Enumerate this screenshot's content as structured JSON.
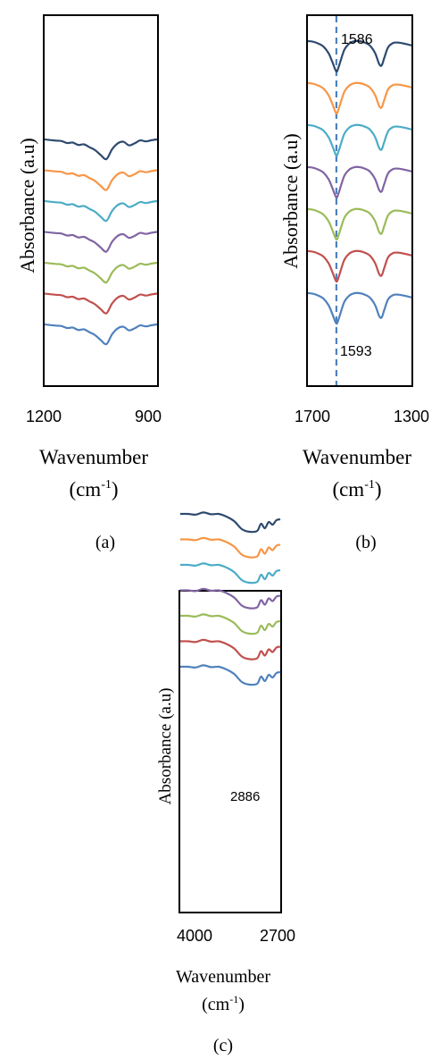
{
  "chart_data": [
    {
      "panel": "(a)",
      "type": "line",
      "ylabel": "Absorbance (a.u)",
      "xlabel": "Wavenumber",
      "xunit": "(cm",
      "xunit_sup": "-1",
      "xunit_close": ")",
      "x_ticks": [
        "1200",
        "900"
      ],
      "xlim": [
        1200,
        900
      ],
      "x_reversed": true,
      "y_ticks_shown": false,
      "grid": false,
      "legend": "none",
      "x": [
        1200,
        1185,
        1170,
        1155,
        1140,
        1125,
        1110,
        1095,
        1080,
        1065,
        1050,
        1035,
        1020,
        1005,
        990,
        975,
        960,
        945,
        930,
        915,
        900
      ],
      "series": [
        {
          "color": "#2E4A6E",
          "offset": 6,
          "values": [
            0.0,
            0.03,
            0.06,
            0.08,
            0.18,
            0.16,
            0.28,
            0.25,
            0.4,
            0.55,
            0.8,
            1.0,
            0.5,
            0.2,
            0.12,
            0.3,
            0.2,
            0.05,
            0.1,
            0.04,
            0.0
          ]
        },
        {
          "color": "#F79646",
          "offset": 5,
          "values": [
            0.0,
            0.03,
            0.06,
            0.08,
            0.18,
            0.16,
            0.28,
            0.25,
            0.4,
            0.55,
            0.8,
            1.0,
            0.5,
            0.2,
            0.12,
            0.3,
            0.2,
            0.05,
            0.1,
            0.04,
            0.0
          ]
        },
        {
          "color": "#4BACC6",
          "offset": 4,
          "values": [
            0.0,
            0.03,
            0.06,
            0.08,
            0.18,
            0.16,
            0.28,
            0.25,
            0.4,
            0.55,
            0.8,
            1.0,
            0.5,
            0.2,
            0.12,
            0.3,
            0.2,
            0.05,
            0.1,
            0.04,
            0.0
          ]
        },
        {
          "color": "#8064A2",
          "offset": 3,
          "values": [
            0.0,
            0.03,
            0.06,
            0.08,
            0.18,
            0.16,
            0.28,
            0.25,
            0.4,
            0.55,
            0.8,
            1.0,
            0.5,
            0.2,
            0.12,
            0.3,
            0.2,
            0.05,
            0.1,
            0.04,
            0.0
          ]
        },
        {
          "color": "#9BBB59",
          "offset": 2,
          "values": [
            0.0,
            0.03,
            0.06,
            0.08,
            0.18,
            0.16,
            0.28,
            0.25,
            0.4,
            0.55,
            0.8,
            1.0,
            0.5,
            0.2,
            0.12,
            0.3,
            0.2,
            0.05,
            0.1,
            0.04,
            0.0
          ]
        },
        {
          "color": "#C0504D",
          "offset": 1,
          "values": [
            0.0,
            0.03,
            0.06,
            0.08,
            0.18,
            0.16,
            0.28,
            0.25,
            0.4,
            0.55,
            0.8,
            1.0,
            0.5,
            0.2,
            0.12,
            0.3,
            0.2,
            0.05,
            0.1,
            0.04,
            0.0
          ]
        },
        {
          "color": "#4F81BD",
          "offset": 0,
          "values": [
            0.0,
            0.03,
            0.06,
            0.08,
            0.18,
            0.16,
            0.28,
            0.25,
            0.4,
            0.55,
            0.8,
            1.0,
            0.5,
            0.2,
            0.12,
            0.3,
            0.2,
            0.05,
            0.1,
            0.04,
            0.0
          ]
        }
      ]
    },
    {
      "panel": "(b)",
      "type": "line",
      "ylabel": "Absorbance (a.u)",
      "xlabel": "Wavenumber",
      "xunit": "(cm",
      "xunit_sup": "-1",
      "xunit_close": ")",
      "x_ticks": [
        "1700",
        "1300"
      ],
      "xlim": [
        1700,
        1300
      ],
      "x_reversed": true,
      "y_ticks_shown": false,
      "grid": false,
      "legend": "none",
      "reference_line": {
        "x": 1590,
        "style": "dashed",
        "color": "#4F81BD"
      },
      "annotations": [
        {
          "text": "1586",
          "x": 1586,
          "position": "top"
        },
        {
          "text": "1593",
          "x": 1593,
          "position": "bottom"
        }
      ],
      "x": [
        1700,
        1680,
        1660,
        1640,
        1620,
        1605,
        1595,
        1588,
        1580,
        1560,
        1540,
        1520,
        1500,
        1480,
        1460,
        1440,
        1425,
        1415,
        1405,
        1390,
        1370,
        1350,
        1330,
        1300
      ],
      "series": [
        {
          "color": "#2E4A6E",
          "offset": 6,
          "values": [
            0.0,
            0.02,
            0.08,
            0.18,
            0.4,
            0.7,
            0.92,
            1.0,
            0.82,
            0.3,
            0.08,
            0.0,
            0.0,
            0.05,
            0.15,
            0.4,
            0.75,
            0.8,
            0.55,
            0.2,
            0.06,
            0.05,
            0.08,
            0.14
          ]
        },
        {
          "color": "#F79646",
          "offset": 5,
          "values": [
            0.0,
            0.02,
            0.08,
            0.18,
            0.4,
            0.7,
            0.92,
            1.0,
            0.82,
            0.3,
            0.08,
            0.0,
            0.0,
            0.05,
            0.15,
            0.4,
            0.75,
            0.8,
            0.55,
            0.2,
            0.06,
            0.05,
            0.08,
            0.14
          ]
        },
        {
          "color": "#4BACC6",
          "offset": 4,
          "values": [
            0.0,
            0.02,
            0.08,
            0.18,
            0.4,
            0.7,
            0.92,
            1.0,
            0.82,
            0.3,
            0.08,
            0.0,
            0.0,
            0.05,
            0.15,
            0.4,
            0.75,
            0.8,
            0.55,
            0.2,
            0.06,
            0.05,
            0.08,
            0.14
          ]
        },
        {
          "color": "#8064A2",
          "offset": 3,
          "values": [
            0.0,
            0.02,
            0.08,
            0.18,
            0.4,
            0.7,
            0.92,
            1.0,
            0.82,
            0.3,
            0.08,
            0.0,
            0.0,
            0.05,
            0.15,
            0.4,
            0.75,
            0.8,
            0.55,
            0.2,
            0.06,
            0.05,
            0.08,
            0.14
          ]
        },
        {
          "color": "#9BBB59",
          "offset": 2,
          "values": [
            0.0,
            0.02,
            0.08,
            0.18,
            0.4,
            0.7,
            0.92,
            1.0,
            0.82,
            0.3,
            0.08,
            0.0,
            0.0,
            0.05,
            0.15,
            0.4,
            0.75,
            0.8,
            0.55,
            0.2,
            0.06,
            0.05,
            0.08,
            0.14
          ]
        },
        {
          "color": "#C0504D",
          "offset": 1,
          "values": [
            0.0,
            0.02,
            0.08,
            0.18,
            0.4,
            0.7,
            0.92,
            1.0,
            0.82,
            0.3,
            0.08,
            0.0,
            0.0,
            0.05,
            0.15,
            0.4,
            0.75,
            0.8,
            0.55,
            0.2,
            0.06,
            0.05,
            0.08,
            0.14
          ]
        },
        {
          "color": "#4F81BD",
          "offset": 0,
          "values": [
            0.0,
            0.02,
            0.08,
            0.18,
            0.4,
            0.7,
            0.92,
            1.0,
            0.82,
            0.3,
            0.08,
            0.0,
            0.0,
            0.05,
            0.15,
            0.4,
            0.75,
            0.8,
            0.55,
            0.2,
            0.06,
            0.05,
            0.08,
            0.14
          ]
        }
      ]
    },
    {
      "panel": "(c)",
      "type": "line",
      "ylabel": "Absorbance (a.u)",
      "xlabel": "Wavenumber",
      "xunit": "(cm",
      "xunit_sup": "-1",
      "xunit_close": ")",
      "x_ticks": [
        "4000",
        "2700"
      ],
      "xlim": [
        4000,
        2700
      ],
      "x_reversed": true,
      "y_ticks_shown": false,
      "grid": false,
      "legend": "none",
      "annotations": [
        {
          "text": "2886",
          "x": 3125,
          "position": "on green series"
        }
      ],
      "x": [
        4000,
        3900,
        3800,
        3700,
        3600,
        3500,
        3400,
        3300,
        3200,
        3100,
        3000,
        2950,
        2900,
        2850,
        2800,
        2750,
        2700
      ],
      "series": [
        {
          "color": "#2E4A6E",
          "offset": 6,
          "values": [
            0.0,
            0.0,
            0.04,
            -0.08,
            0.02,
            0.0,
            0.15,
            0.4,
            0.85,
            1.0,
            0.95,
            0.55,
            0.8,
            0.45,
            0.6,
            0.35,
            0.3
          ]
        },
        {
          "color": "#F79646",
          "offset": 5,
          "values": [
            0.0,
            0.0,
            0.04,
            -0.08,
            0.02,
            0.0,
            0.15,
            0.4,
            0.85,
            1.0,
            0.95,
            0.55,
            0.8,
            0.45,
            0.6,
            0.35,
            0.3
          ]
        },
        {
          "color": "#4BACC6",
          "offset": 4,
          "values": [
            0.0,
            0.0,
            0.04,
            -0.08,
            0.02,
            0.0,
            0.15,
            0.4,
            0.85,
            1.0,
            0.95,
            0.55,
            0.8,
            0.45,
            0.6,
            0.35,
            0.3
          ]
        },
        {
          "color": "#8064A2",
          "offset": 3,
          "values": [
            0.0,
            0.0,
            0.04,
            -0.08,
            0.02,
            0.0,
            0.15,
            0.4,
            0.85,
            1.0,
            0.95,
            0.55,
            0.8,
            0.45,
            0.6,
            0.35,
            0.3
          ]
        },
        {
          "color": "#9BBB59",
          "offset": 2,
          "values": [
            0.0,
            0.0,
            0.04,
            -0.08,
            0.02,
            0.0,
            0.15,
            0.4,
            0.85,
            1.0,
            0.95,
            0.55,
            0.8,
            0.45,
            0.6,
            0.35,
            0.3
          ]
        },
        {
          "color": "#C0504D",
          "offset": 1,
          "values": [
            0.0,
            0.0,
            0.04,
            -0.08,
            0.02,
            0.0,
            0.15,
            0.4,
            0.85,
            1.0,
            0.95,
            0.55,
            0.8,
            0.45,
            0.6,
            0.35,
            0.3
          ]
        },
        {
          "color": "#4F81BD",
          "offset": 0,
          "values": [
            0.0,
            0.0,
            0.04,
            -0.08,
            0.02,
            0.0,
            0.15,
            0.4,
            0.85,
            1.0,
            0.95,
            0.55,
            0.8,
            0.45,
            0.6,
            0.35,
            0.3
          ]
        }
      ]
    }
  ]
}
